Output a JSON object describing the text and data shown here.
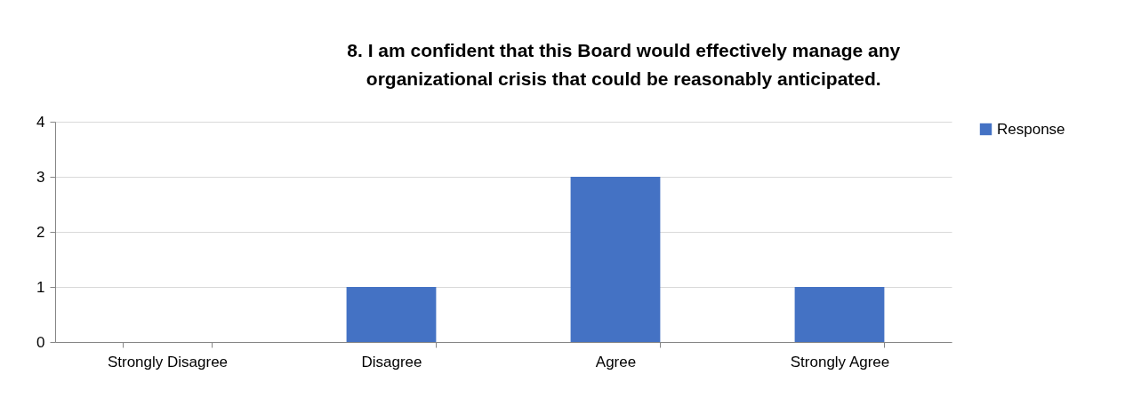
{
  "chart_data": {
    "type": "bar",
    "title": "8. I am confident that this Board would effectively manage any organizational crisis that could be reasonably anticipated.",
    "categories": [
      "Strongly Disagree",
      "Disagree",
      "Agree",
      "Strongly Agree"
    ],
    "series": [
      {
        "name": "Response",
        "color": "#4472c4",
        "values": [
          0,
          1,
          3,
          1
        ]
      }
    ],
    "ylim": [
      0,
      4
    ],
    "yticks": [
      0,
      1,
      2,
      3,
      4
    ],
    "grid": "y",
    "legend": "right"
  }
}
